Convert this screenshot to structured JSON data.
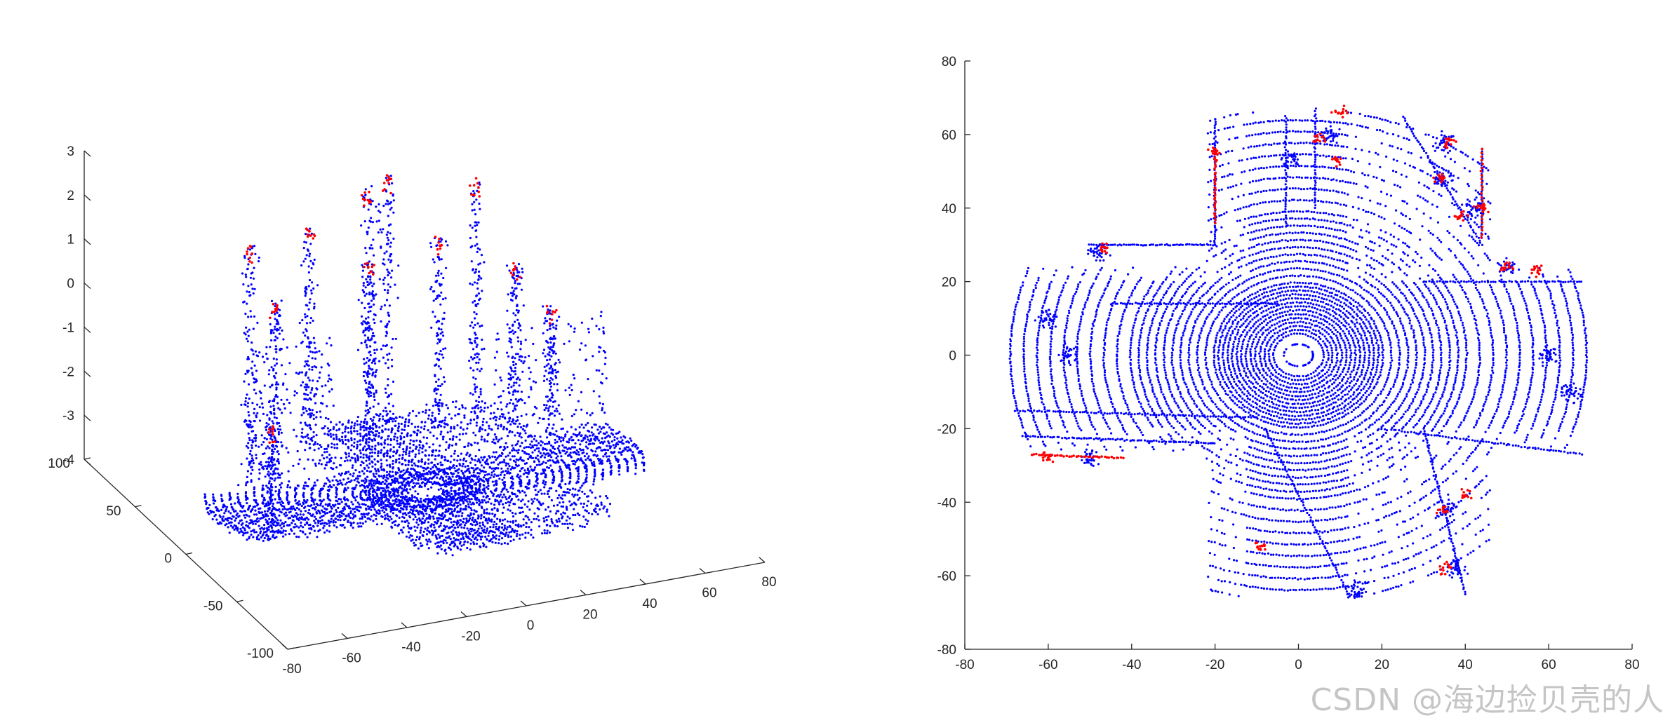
{
  "chart_data": [
    {
      "type": "scatter",
      "view": "3d-perspective",
      "title": "",
      "xlabel": "",
      "ylabel": "",
      "zlabel": "",
      "xlim": [
        -80,
        80
      ],
      "ylim": [
        -100,
        100
      ],
      "zlim": [
        -4,
        3
      ],
      "x_ticks": [
        "-80",
        "-60",
        "-40",
        "-20",
        "0",
        "20",
        "40",
        "60",
        "80"
      ],
      "y_ticks": [
        "-100",
        "-50",
        "0",
        "50",
        "100"
      ],
      "z_ticks": [
        "-4",
        "-3",
        "-2",
        "-1",
        "0",
        "1",
        "2",
        "3"
      ],
      "grid": false,
      "legend": "none",
      "series": [
        {
          "color": "#0000ff",
          "description_of_points": "ground and obstacle lidar returns"
        },
        {
          "color": "#ff0000",
          "description_of_points": "highlighted points near top of structures"
        }
      ]
    },
    {
      "type": "scatter",
      "view": "2d-top-down",
      "title": "",
      "xlabel": "",
      "ylabel": "",
      "xlim": [
        -80,
        80
      ],
      "ylim": [
        -80,
        80
      ],
      "x_ticks": [
        "-80",
        "-60",
        "-40",
        "-20",
        "0",
        "20",
        "40",
        "60",
        "80"
      ],
      "y_ticks": [
        "-80",
        "-60",
        "-40",
        "-20",
        "0",
        "20",
        "40",
        "60",
        "80"
      ],
      "grid": false,
      "legend": "none",
      "series": [
        {
          "color": "#0000ff"
        },
        {
          "color": "#ff0000"
        }
      ],
      "red_regions": [
        {
          "x": -20,
          "y": 55
        },
        {
          "x": -47,
          "y": 29
        },
        {
          "x": 5,
          "y": 59
        },
        {
          "x": 9,
          "y": 53
        },
        {
          "x": 10,
          "y": 66
        },
        {
          "x": 36,
          "y": 58
        },
        {
          "x": 34,
          "y": 48
        },
        {
          "x": 39,
          "y": 38
        },
        {
          "x": 44,
          "y": 40
        },
        {
          "x": 50,
          "y": 24
        },
        {
          "x": 57,
          "y": 23
        },
        {
          "x": -60,
          "y": -28
        },
        {
          "x": -9,
          "y": -52
        },
        {
          "x": 35,
          "y": -42
        },
        {
          "x": 40,
          "y": -38
        },
        {
          "x": 35,
          "y": -58
        }
      ]
    }
  ],
  "watermark": "CSDN @海边捡贝壳的人"
}
